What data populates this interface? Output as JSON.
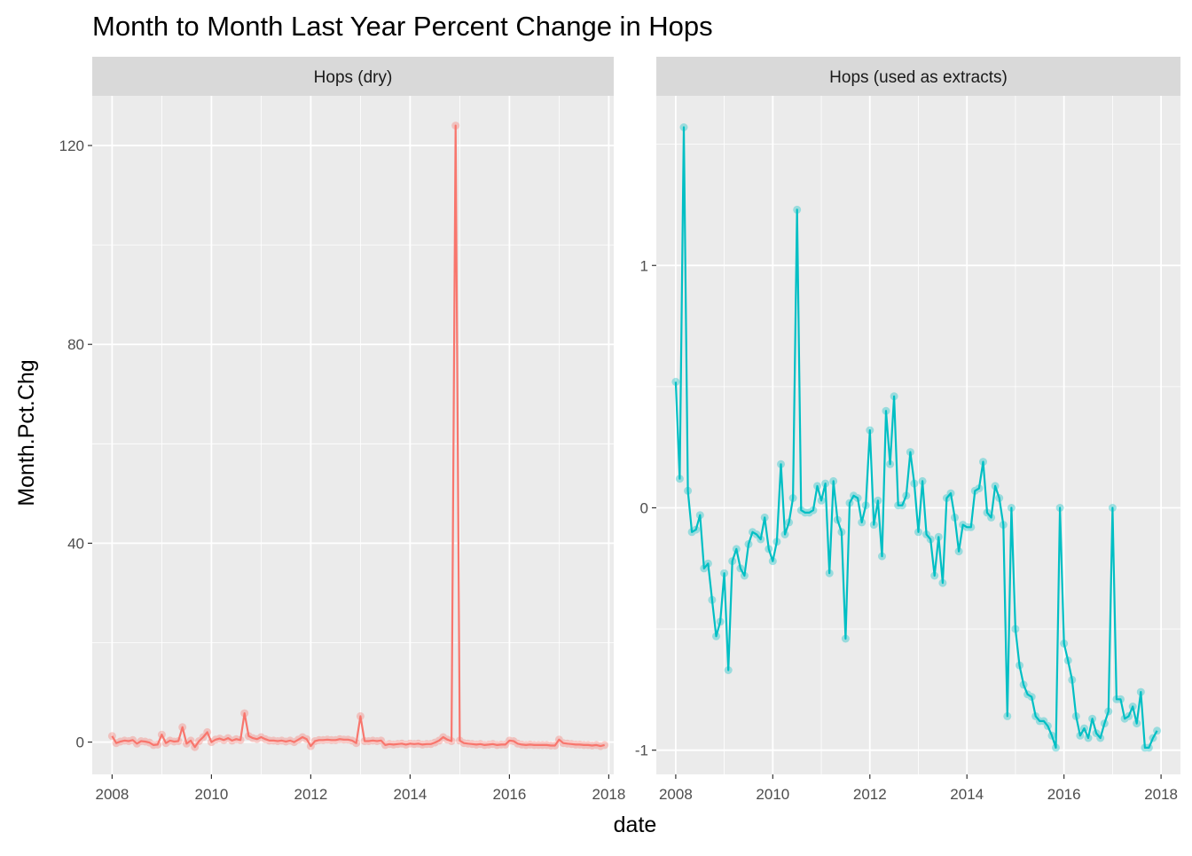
{
  "title": "Month to Month Last Year Percent Change in Hops",
  "xlabel": "date",
  "ylabel": "Month.Pct.Chg",
  "colors": {
    "panel_bg": "#ebebeb",
    "strip_bg": "#d9d9d9",
    "grid": "#ffffff"
  },
  "chart_data": [
    {
      "type": "line",
      "panel": "Hops (dry)",
      "color": "#f8766d",
      "xlim": [
        2007.6,
        2018.1
      ],
      "ylim": [
        -6.5,
        130
      ],
      "xticks": [
        2008,
        2010,
        2012,
        2014,
        2016,
        2018
      ],
      "yticks": [
        0,
        40,
        80,
        120
      ],
      "ytick_labels": [
        "0",
        "40",
        "80",
        "120"
      ],
      "start_year": 2008,
      "values": [
        1.2,
        -0.2,
        0.1,
        0.3,
        0.2,
        0.4,
        -0.3,
        0.2,
        0.1,
        -0.1,
        -0.6,
        -0.5,
        1.5,
        -0.2,
        0.3,
        0.1,
        0.2,
        3.0,
        -0.3,
        0.3,
        -1.0,
        0.2,
        1.0,
        2.0,
        0.0,
        0.5,
        0.7,
        0.4,
        0.8,
        0.3,
        0.6,
        0.4,
        5.8,
        1.2,
        0.8,
        0.6,
        1.0,
        0.6,
        0.3,
        0.3,
        0.2,
        0.3,
        0.1,
        0.3,
        0.0,
        0.5,
        1.0,
        0.6,
        -0.8,
        0.2,
        0.4,
        0.4,
        0.5,
        0.4,
        0.4,
        0.6,
        0.5,
        0.5,
        0.3,
        -0.2,
        5.2,
        0.2,
        0.2,
        0.3,
        0.2,
        0.3,
        -0.6,
        -0.4,
        -0.5,
        -0.4,
        -0.3,
        -0.5,
        -0.3,
        -0.4,
        -0.3,
        -0.5,
        -0.4,
        -0.4,
        -0.1,
        0.3,
        1.0,
        0.5,
        0.2,
        124.0,
        0.3,
        -0.2,
        -0.3,
        -0.4,
        -0.5,
        -0.4,
        -0.6,
        -0.5,
        -0.4,
        -0.6,
        -0.5,
        -0.5,
        0.3,
        0.2,
        -0.3,
        -0.5,
        -0.6,
        -0.5,
        -0.6,
        -0.6,
        -0.6,
        -0.6,
        -0.7,
        -0.7,
        0.5,
        -0.2,
        -0.3,
        -0.4,
        -0.5,
        -0.5,
        -0.6,
        -0.6,
        -0.7,
        -0.6,
        -0.8,
        -0.6
      ]
    },
    {
      "type": "line",
      "panel": "Hops (used as extracts)",
      "color": "#00bfc4",
      "xlim": [
        2007.6,
        2018.4
      ],
      "ylim": [
        -1.1,
        1.7
      ],
      "xticks": [
        2008,
        2010,
        2012,
        2014,
        2016,
        2018
      ],
      "yticks": [
        -1,
        0,
        1
      ],
      "ytick_labels": [
        "-1",
        "0",
        "1"
      ],
      "start_year": 2008,
      "values": [
        0.52,
        0.12,
        1.57,
        0.07,
        -0.1,
        -0.09,
        -0.03,
        -0.25,
        -0.23,
        -0.38,
        -0.53,
        -0.47,
        -0.27,
        -0.67,
        -0.22,
        -0.17,
        -0.25,
        -0.28,
        -0.15,
        -0.1,
        -0.11,
        -0.13,
        -0.04,
        -0.17,
        -0.22,
        -0.14,
        0.18,
        -0.11,
        -0.06,
        0.04,
        1.23,
        -0.01,
        -0.02,
        -0.02,
        -0.01,
        0.09,
        0.03,
        0.1,
        -0.27,
        0.11,
        -0.05,
        -0.1,
        -0.54,
        0.02,
        0.05,
        0.04,
        -0.06,
        0.01,
        0.32,
        -0.07,
        0.03,
        -0.2,
        0.4,
        0.18,
        0.46,
        0.01,
        0.01,
        0.05,
        0.23,
        0.1,
        -0.1,
        0.11,
        -0.11,
        -0.13,
        -0.28,
        -0.12,
        -0.31,
        0.04,
        0.06,
        -0.04,
        -0.18,
        -0.07,
        -0.08,
        -0.08,
        0.07,
        0.08,
        0.19,
        -0.02,
        -0.04,
        0.09,
        0.04,
        -0.07,
        -0.86,
        0.0,
        -0.5,
        -0.65,
        -0.73,
        -0.77,
        -0.78,
        -0.86,
        -0.88,
        -0.88,
        -0.9,
        -0.94,
        -0.99,
        0.0,
        -0.56,
        -0.63,
        -0.71,
        -0.86,
        -0.94,
        -0.91,
        -0.95,
        -0.87,
        -0.93,
        -0.95,
        -0.89,
        -0.84,
        0.0,
        -0.79,
        -0.79,
        -0.87,
        -0.86,
        -0.82,
        -0.89,
        -0.76,
        -0.99,
        -0.99,
        -0.95,
        -0.92
      ]
    }
  ]
}
